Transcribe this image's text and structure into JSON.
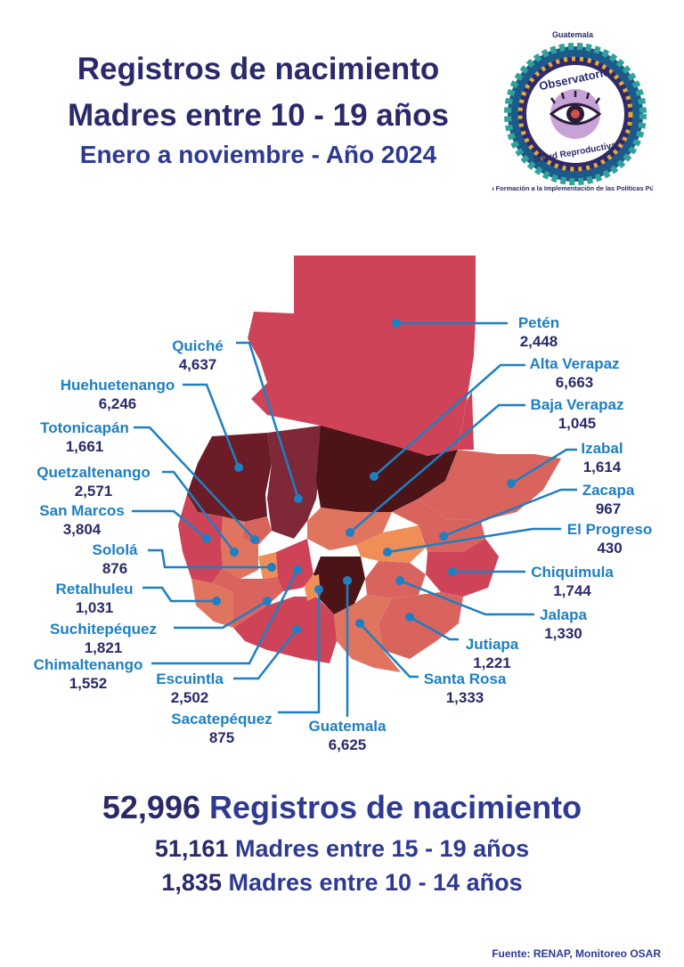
{
  "header": {
    "line1": "Registros de nacimiento",
    "line2": "Madres entre 10 - 19 años",
    "line3": "Enero a noviembre - Año 2024"
  },
  "logo": {
    "top_text": "Guatemala",
    "ring_text_1": "Observatorio",
    "ring_text_2": "Salud Reproductiva",
    "bottom_text": "De la Formación a la Implementación de las Políticas Públicas",
    "icon": "eye-icon"
  },
  "departments": [
    {
      "name": "Petén",
      "value": "2,448"
    },
    {
      "name": "Alta Verapaz",
      "value": "6,663"
    },
    {
      "name": "Baja Verapaz",
      "value": "1,045"
    },
    {
      "name": "Izabal",
      "value": "1,614"
    },
    {
      "name": "Zacapa",
      "value": "967"
    },
    {
      "name": "El Progreso",
      "value": "430"
    },
    {
      "name": "Chiquimula",
      "value": "1,744"
    },
    {
      "name": "Jalapa",
      "value": "1,330"
    },
    {
      "name": "Jutiapa",
      "value": "1,221"
    },
    {
      "name": "Santa Rosa",
      "value": "1,333"
    },
    {
      "name": "Guatemala",
      "value": "6,625"
    },
    {
      "name": "Sacatepéquez",
      "value": "875"
    },
    {
      "name": "Escuintla",
      "value": "2,502"
    },
    {
      "name": "Chimaltenango",
      "value": "1,552"
    },
    {
      "name": "Suchitepéquez",
      "value": "1,821"
    },
    {
      "name": "Retalhuleu",
      "value": "1,031"
    },
    {
      "name": "Sololá",
      "value": "876"
    },
    {
      "name": "San Marcos",
      "value": "3,804"
    },
    {
      "name": "Quetzaltenango",
      "value": "2,571"
    },
    {
      "name": "Totonicapán",
      "value": "1,661"
    },
    {
      "name": "Huehuetenango",
      "value": "6,246"
    },
    {
      "name": "Quiché",
      "value": "4,637"
    }
  ],
  "colors": {
    "dark": "#4d1418",
    "dark2": "#6b1c26",
    "mid": "#7e2838",
    "red": "#cf4359",
    "salmon": "#d9645e",
    "coral": "#e0745f",
    "orange": "#ef8f57",
    "leader": "#1e7fc2"
  },
  "totals": {
    "total_value": "52,996",
    "total_label": "Registros de nacimiento",
    "row2_value": "51,161",
    "row2_label": "Madres entre 15 - 19 años",
    "row3_value": "1,835",
    "row3_label": "Madres entre 10 - 14 años"
  },
  "source": "Fuente: RENAP, Monitoreo OSAR"
}
